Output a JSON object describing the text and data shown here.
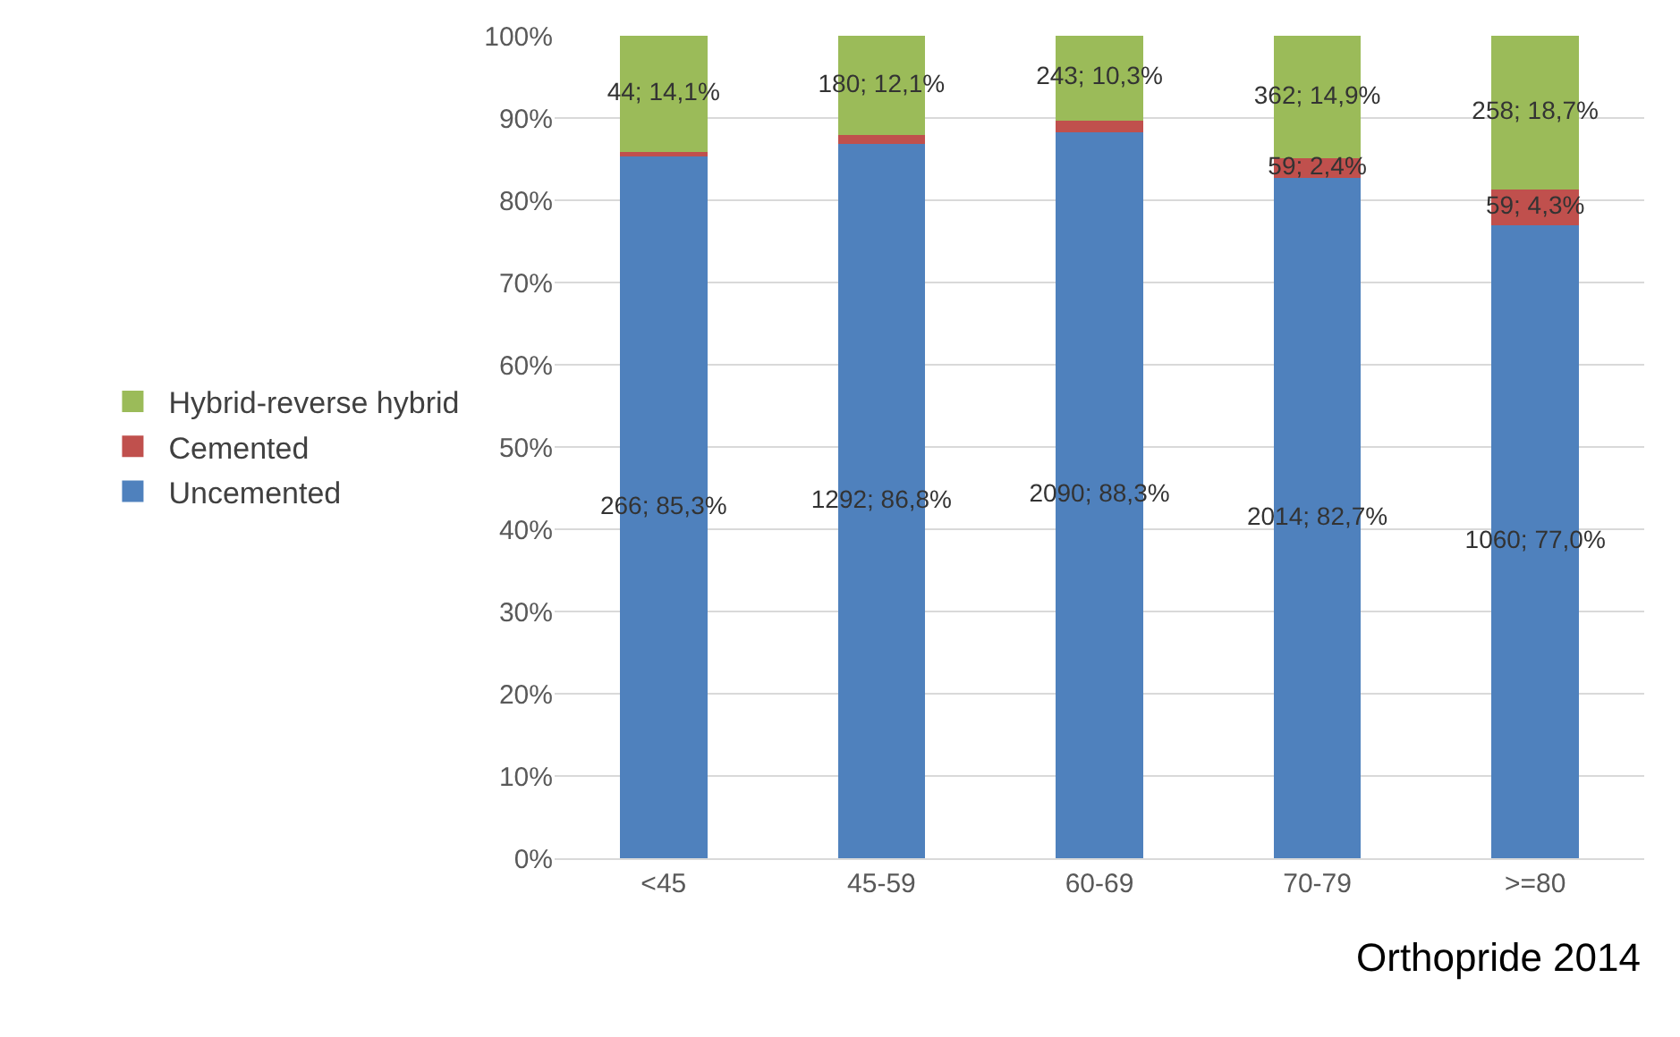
{
  "chart_data": {
    "type": "bar",
    "stacked": true,
    "categories": [
      "<45",
      "45-59",
      "60-69",
      "70-79",
      ">=80"
    ],
    "series": [
      {
        "name": "Uncemented",
        "color": "#4f81bd",
        "values": [
          85.3,
          86.8,
          88.3,
          82.7,
          77.0
        ],
        "value_labels": [
          "266; 85,3%",
          "1292; 86,8%",
          "2090; 88,3%",
          "2014; 82,7%",
          "1060; 77,0%"
        ]
      },
      {
        "name": "Cemented",
        "color": "#c0504d",
        "values": [
          0.6,
          1.1,
          1.4,
          2.4,
          4.3
        ],
        "value_labels": [
          null,
          null,
          null,
          "59; 2,4%",
          "59; 4,3%"
        ]
      },
      {
        "name": "Hybrid-reverse hybrid",
        "color": "#9bbb59",
        "values": [
          14.1,
          12.1,
          10.3,
          14.9,
          18.7
        ],
        "value_labels": [
          "44; 14,1%",
          "180; 12,1%",
          "243; 10,3%",
          "362; 14,9%",
          "258; 18,7%"
        ]
      }
    ],
    "ylim": [
      0,
      100
    ],
    "yticks": [
      {
        "value": 0,
        "label": "0%"
      },
      {
        "value": 10,
        "label": "10%"
      },
      {
        "value": 20,
        "label": "20%"
      },
      {
        "value": 30,
        "label": "30%"
      },
      {
        "value": 40,
        "label": "40%"
      },
      {
        "value": 50,
        "label": "50%"
      },
      {
        "value": 60,
        "label": "60%"
      },
      {
        "value": 70,
        "label": "70%"
      },
      {
        "value": 80,
        "label": "80%"
      },
      {
        "value": 90,
        "label": "90%"
      },
      {
        "value": 100,
        "label": "100%"
      }
    ],
    "grid": "y",
    "legend": "left",
    "annotations": [
      "Orthopride 2014"
    ]
  }
}
